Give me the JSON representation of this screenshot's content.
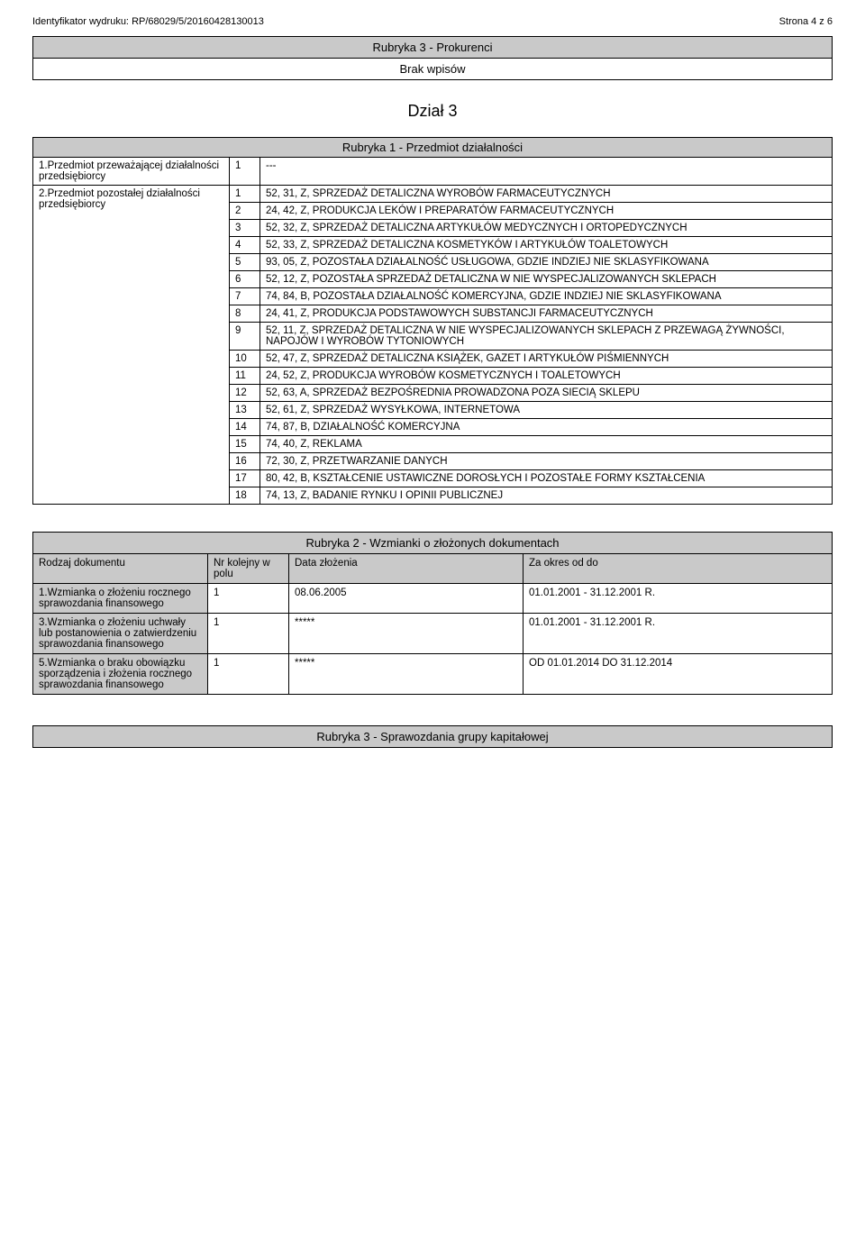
{
  "header": {
    "print_id_label": "Identyfikator wydruku:",
    "print_id_value": "RP/68029/5/20160428130013",
    "page_label": "Strona 4 z 6"
  },
  "rubryka3_prokurenci": {
    "title": "Rubryka 3 - Prokurenci",
    "content": "Brak wpisów"
  },
  "dzial3_title": "Dział 3",
  "rubryka1": {
    "title": "Rubryka 1 - Przedmiot działalności",
    "row1_label": "1.Przedmiot przeważającej działalności przedsiębiorcy",
    "row1_items": [
      {
        "n": "1",
        "v": "---"
      }
    ],
    "row2_label": "2.Przedmiot pozostałej działalności przedsiębiorcy",
    "row2_items": [
      {
        "n": "1",
        "v": "52, 31, Z, SPRZEDAŻ DETALICZNA WYROBÓW FARMACEUTYCZNYCH"
      },
      {
        "n": "2",
        "v": "24, 42, Z, PRODUKCJA  LEKÓW  I PREPARATÓW FARMACEUTYCZNYCH"
      },
      {
        "n": "3",
        "v": "52, 32, Z, SPRZEDAŻ DETALICZNA ARTYKUŁÓW MEDYCZNYCH I ORTOPEDYCZNYCH"
      },
      {
        "n": "4",
        "v": "52, 33, Z, SPRZEDAŻ DETALICZNA KOSMETYKÓW I ARTYKUŁÓW TOALETOWYCH"
      },
      {
        "n": "5",
        "v": "93, 05, Z, POZOSTAŁA DZIAŁALNOŚĆ USŁUGOWA, GDZIE INDZIEJ NIE SKLASYFIKOWANA"
      },
      {
        "n": "6",
        "v": "52, 12, Z, POZOSTAŁA SPRZEDAŻ DETALICZNA W NIE WYSPECJALIZOWANYCH SKLEPACH"
      },
      {
        "n": "7",
        "v": "74, 84, B, POZOSTAŁA DZIAŁALNOŚĆ KOMERCYJNA, GDZIE INDZIEJ NIE SKLASYFIKOWANA"
      },
      {
        "n": "8",
        "v": "24, 41, Z, PRODUKCJA PODSTAWOWYCH SUBSTANCJI FARMACEUTYCZNYCH"
      },
      {
        "n": "9",
        "v": "52, 11, Z, SPRZEDAŻ DETALICZNA W NIE WYSPECJALIZOWANYCH SKLEPACH Z PRZEWAGĄ ŻYWNOŚCI, NAPOJÓW I WYROBÓW TYTONIOWYCH"
      },
      {
        "n": "10",
        "v": "52, 47, Z, SPRZEDAŻ DETALICZNA KSIĄŻEK, GAZET I ARTYKUŁÓW PIŚMIENNYCH"
      },
      {
        "n": "11",
        "v": "24, 52, Z, PRODUKCJA WYROBÓW KOSMETYCZNYCH I TOALETOWYCH"
      },
      {
        "n": "12",
        "v": "52, 63, A, SPRZEDAŻ BEZPOŚREDNIA PROWADZONA POZA SIECIĄ SKLEPU"
      },
      {
        "n": "13",
        "v": "52, 61, Z, SPRZEDAŻ WYSYŁKOWA, INTERNETOWA"
      },
      {
        "n": "14",
        "v": "74, 87, B, DZIAŁALNOŚĆ KOMERCYJNA"
      },
      {
        "n": "15",
        "v": "74, 40, Z, REKLAMA"
      },
      {
        "n": "16",
        "v": "72, 30, Z, PRZETWARZANIE DANYCH"
      },
      {
        "n": "17",
        "v": "80, 42, B, KSZTAŁCENIE USTAWICZNE DOROSŁYCH I POZOSTAŁE FORMY KSZTAŁCENIA"
      },
      {
        "n": "18",
        "v": "74, 13, Z, BADANIE RYNKU I OPINII PUBLICZNEJ"
      }
    ]
  },
  "rubryka2": {
    "title": "Rubryka 2 - Wzmianki o złożonych dokumentach",
    "cols": {
      "c1": "Rodzaj dokumentu",
      "c2": "Nr kolejny w polu",
      "c3": "Data złożenia",
      "c4": "Za okres od do"
    },
    "rows": [
      {
        "label": "1.Wzmianka o złożeniu rocznego sprawozdania finansowego",
        "n": "1",
        "date": "08.06.2005",
        "period": "01.01.2001 - 31.12.2001 R."
      },
      {
        "label": "3.Wzmianka o złożeniu uchwały lub postanowienia o zatwierdzeniu sprawozdania finansowego",
        "n": "1",
        "date": "*****",
        "period": "01.01.2001 - 31.12.2001 R."
      },
      {
        "label": "5.Wzmianka o braku obowiązku sporządzenia i złożenia rocznego sprawozdania finansowego",
        "n": "1",
        "date": "*****",
        "period": "OD 01.01.2014 DO 31.12.2014"
      }
    ]
  },
  "rubryka3_grupa": {
    "title": "Rubryka 3 - Sprawozdania grupy kapitałowej"
  }
}
